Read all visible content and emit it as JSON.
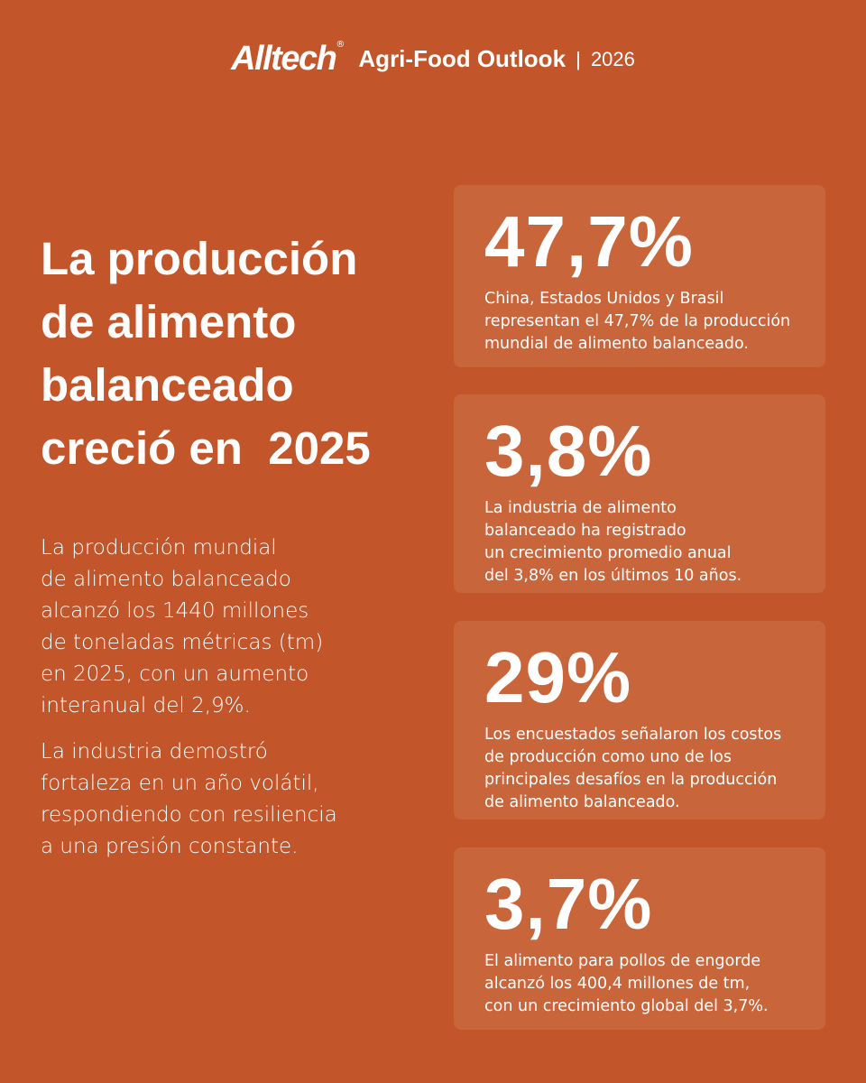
{
  "header": {
    "brand": "Alltech",
    "registered": "®",
    "product": "Agri-Food Outlook",
    "separator": "|",
    "year": "2026"
  },
  "headline": {
    "lines": [
      "La producción",
      "de alimento",
      "balanceado",
      "creció en  2025"
    ]
  },
  "paragraphs": [
    {
      "lines": [
        "La producción mundial",
        "de alimento balanceado",
        "alcanzó los 1440 millones",
        "de toneladas métricas (tm)",
        "en 2025, con un aumento",
        "interanual del 2,9%."
      ]
    },
    {
      "lines": [
        "La industria demostró",
        "fortaleza en un año volátil,",
        "respondiendo con resiliencia",
        "a una presión constante."
      ]
    }
  ],
  "stats": [
    {
      "figure": "47,7%",
      "lines": [
        "China, Estados Unidos y Brasil",
        "representan el 47,7% de la producción",
        "mundial de alimento balanceado."
      ]
    },
    {
      "figure": "3,8%",
      "lines": [
        "La industria de alimento",
        "balanceado ha registrado",
        "un crecimiento promedio anual",
        "del 3,8% en los últimos 10 años."
      ]
    },
    {
      "figure": "29%",
      "lines": [
        "Los encuestados señalaron los costos",
        "de producción como uno de los",
        "principales desafíos en la producción",
        "de alimento balanceado."
      ]
    },
    {
      "figure": "3,7%",
      "lines": [
        "El alimento para pollos de engorde",
        "alcanzó los 400,4 millones de tm,",
        "con un crecimiento global del 3,7%."
      ]
    }
  ]
}
